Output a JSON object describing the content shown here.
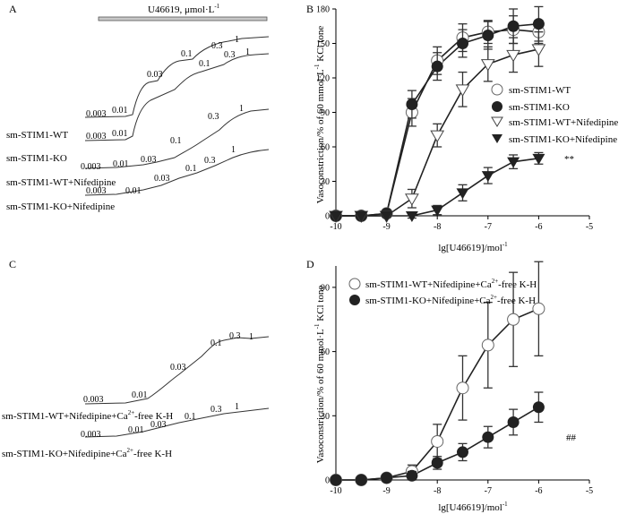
{
  "panels": {
    "A": {
      "label": "A",
      "drug_bar": {
        "text": "U46619, μmol·L",
        "exponent": "-1"
      },
      "traces": [
        {
          "name": "sm-STIM1-WT",
          "labels": [
            "0.003",
            "0.01",
            "0.03",
            "0.1",
            "0.3",
            "1"
          ]
        },
        {
          "name": "sm-STIM1-KO",
          "labels": [
            "0.003",
            "0.01",
            "0.1",
            "0.3",
            "1"
          ]
        },
        {
          "name": "sm-STIM1-WT+Nifedipine",
          "labels": [
            "0.003",
            "0.01",
            "0.03",
            "0.1",
            "0.3",
            "1"
          ]
        },
        {
          "name": "sm-STIM1-KO+Nifedipine",
          "labels": [
            "0.003",
            "0.01",
            "0.03",
            "0.1",
            "0.3",
            "1"
          ]
        }
      ]
    },
    "C": {
      "label": "C",
      "traces": [
        {
          "name_pre": "sm-STIM1-WT+Nifedipine+Ca",
          "name_sup": "2+",
          "name_post": "-free K-H",
          "labels": [
            "0.003",
            "0.01",
            "0.03",
            "0.1",
            "0.3",
            "1"
          ]
        },
        {
          "name_pre": "sm-STIM1-KO+Nifedipine+Ca",
          "name_sup": "2+",
          "name_post": "-free K-H",
          "labels": [
            "0.003",
            "0.01",
            "0.03",
            "0.1",
            "0.3",
            "1"
          ]
        }
      ]
    }
  },
  "chart_data": [
    {
      "panel": "B",
      "type": "line",
      "ylabel_pre": "Vasoconstriction/% of 60 mmol·L",
      "ylabel_sup": "-1",
      "ylabel_post": " KCl tone",
      "xlabel": "lg[U46619]/mol",
      "xlabel_sup": "-1",
      "xlim": [
        -10,
        -5
      ],
      "ylim": [
        0,
        180
      ],
      "xticks": [
        "-10",
        "-9",
        "-8",
        "-7",
        "-6",
        "-5"
      ],
      "yticks": [
        "0",
        "30",
        "60",
        "90",
        "120",
        "150",
        "180"
      ],
      "legend_position": "right",
      "x": [
        -10,
        -9.5,
        -9,
        -8.5,
        -8,
        -7.5,
        -7,
        -6.5,
        -6
      ],
      "series": [
        {
          "name": "sm-STIM1-WT",
          "marker": "circle-open",
          "values": [
            0,
            0,
            2,
            90,
            135,
            155,
            160,
            162,
            160
          ],
          "errors": [
            0,
            0,
            2,
            12,
            12,
            12,
            10,
            12,
            10
          ]
        },
        {
          "name": "sm-STIM1-KO",
          "marker": "circle-filled",
          "values": [
            0,
            0,
            2,
            97,
            130,
            150,
            157,
            165,
            167
          ],
          "errors": [
            0,
            0,
            2,
            12,
            12,
            12,
            12,
            15,
            15
          ]
        },
        {
          "name": "sm-STIM1-WT+Nifedipine",
          "marker": "triangle-down-open",
          "values": [
            0,
            0,
            0,
            15,
            70,
            110,
            132,
            140,
            145
          ],
          "errors": [
            0,
            0,
            0,
            8,
            10,
            15,
            15,
            15,
            15
          ]
        },
        {
          "name": "sm-STIM1-KO+Nifedipine",
          "marker": "triangle-down-filled",
          "values": [
            0,
            0,
            0,
            0,
            5,
            20,
            35,
            47,
            50
          ],
          "errors": [
            0,
            0,
            0,
            2,
            4,
            7,
            7,
            6,
            5
          ]
        }
      ],
      "annotation": "**"
    },
    {
      "panel": "D",
      "type": "line",
      "ylabel_pre": "Vasoconstriction/% of 60 mmol·L",
      "ylabel_sup": "-1",
      "ylabel_post": " KCl tone",
      "xlabel": "lg[U46619]/mol",
      "xlabel_sup": "-1",
      "xlim": [
        -10,
        -5
      ],
      "ylim": [
        0,
        100
      ],
      "xticks": [
        "-10",
        "-9",
        "-8",
        "-7",
        "-6",
        "-5"
      ],
      "yticks": [
        "0",
        "30",
        "60",
        "90"
      ],
      "legend_position": "top",
      "x": [
        -10,
        -9.5,
        -9,
        -8.5,
        -8,
        -7.5,
        -7,
        -6.5,
        -6
      ],
      "series": [
        {
          "name_pre": "sm-STIM1-WT+Nifedipine+Ca",
          "name_sup": "2+",
          "name_post": "-free K-H",
          "marker": "circle-open",
          "values": [
            0,
            0,
            1,
            4,
            18,
            43,
            63,
            75,
            80
          ],
          "errors": [
            0,
            0,
            1,
            3,
            8,
            15,
            20,
            22,
            22
          ]
        },
        {
          "name_pre": "sm-STIM1-KO+Nifedipine+Ca",
          "name_sup": "2+",
          "name_post": "-free K-H",
          "marker": "circle-filled",
          "values": [
            0,
            0,
            1,
            2,
            8,
            13,
            20,
            27,
            34
          ],
          "errors": [
            0,
            0,
            1,
            2,
            3,
            4,
            5,
            6,
            7
          ]
        }
      ],
      "annotation": "##"
    }
  ]
}
